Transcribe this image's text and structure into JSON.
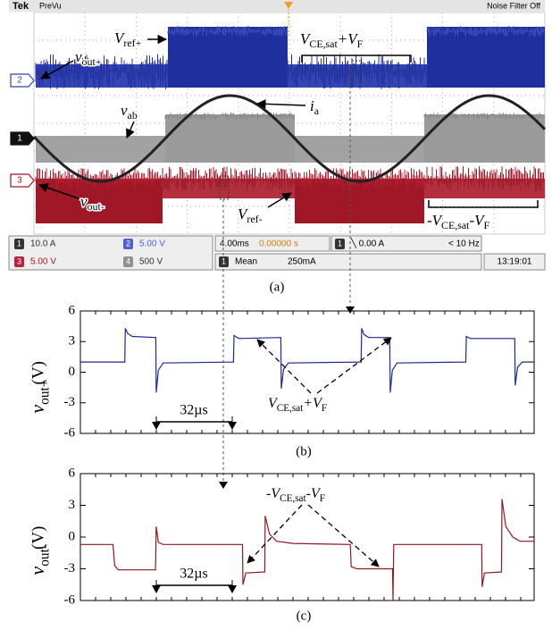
{
  "scope": {
    "brand": "Tek",
    "mode": "PreVu",
    "filter": "Noise Filter Off",
    "markers": [
      "2",
      "1",
      "3"
    ],
    "labels": {
      "vout_plus": [
        "v",
        "out+"
      ],
      "vref_plus": [
        "V",
        "ref+"
      ],
      "vce_plus": [
        "V",
        "CE,sat",
        "+V",
        "F"
      ],
      "vab": [
        "v",
        "ab"
      ],
      "ia": [
        "i",
        "a"
      ],
      "vout_minus": [
        "v",
        "out-"
      ],
      "vref_minus": [
        "V",
        "ref-"
      ],
      "vce_minus": [
        "-V",
        "CE,sat",
        "-V",
        "F"
      ]
    },
    "status": {
      "channels": [
        {
          "n": "1",
          "v": "10.0 A"
        },
        {
          "n": "2",
          "v": "5.00 V"
        },
        {
          "n": "3",
          "v": "5.00 V"
        },
        {
          "n": "4",
          "v": "500 V"
        }
      ],
      "timebase": "4.00ms",
      "position": "0.00000 s",
      "trigger": {
        "n": "1",
        "v": "╲ 0.00 A"
      },
      "freq": "< 10 Hz",
      "measure": {
        "n": "1",
        "name": "Mean",
        "v": "250mA"
      },
      "time": "13:19:01"
    },
    "caption": "(a)"
  },
  "chart_data": [
    {
      "type": "line",
      "ylabel": [
        "v",
        "out+"
      ],
      "yunit": "(V)",
      "color": "#1c2a8c",
      "xlim": [
        0,
        192
      ],
      "ylim": [
        -6,
        6
      ],
      "yticks": [
        -6,
        -3,
        0,
        3,
        6
      ],
      "x": [
        0,
        18.8,
        19,
        20,
        22,
        31.9,
        32.1,
        33,
        35,
        64.8,
        65,
        67,
        84.8,
        85,
        86,
        88,
        118.8,
        119,
        120,
        122,
        130.9,
        131.1,
        132,
        134,
        163.1,
        163.3,
        165,
        183.8,
        184,
        185,
        187,
        192
      ],
      "values": [
        1.0,
        1.0,
        4.3,
        3.8,
        3.5,
        3.4,
        -2.0,
        0.2,
        0.9,
        1.0,
        3.6,
        3.3,
        3.4,
        -1.6,
        0.3,
        0.9,
        1.0,
        4.3,
        3.7,
        3.4,
        3.4,
        -2.0,
        0.2,
        0.9,
        1.0,
        3.5,
        3.3,
        3.3,
        -1.3,
        0.5,
        1.0,
        1.0
      ],
      "annotation": [
        "V",
        "CE,sat",
        "+V",
        "F"
      ],
      "scale_label": "32µs",
      "caption": "(b)"
    },
    {
      "type": "line",
      "ylabel": [
        "v",
        "out-"
      ],
      "yunit": "(V)",
      "color": "#8e1a1e",
      "xlim": [
        0,
        192
      ],
      "ylim": [
        -6,
        6
      ],
      "yticks": [
        -6,
        -3,
        0,
        3,
        6
      ],
      "x": [
        0,
        13.8,
        14.5,
        16,
        31.8,
        32.1,
        33,
        35,
        68.6,
        68.8,
        70,
        78,
        78.2,
        80,
        83,
        90,
        114.2,
        114.6,
        117,
        132.1,
        132.3,
        132.6,
        169.8,
        170,
        171,
        178.2,
        178.4,
        180,
        183,
        186,
        192
      ],
      "values": [
        -0.7,
        -0.7,
        -2.7,
        -3.1,
        -3.1,
        1.0,
        -0.5,
        -0.7,
        -0.7,
        -4.5,
        -3.4,
        -3.3,
        2.0,
        0.3,
        -0.4,
        -0.6,
        -0.7,
        -2.8,
        -3.0,
        -3.0,
        -6.0,
        -0.7,
        -0.7,
        -4.7,
        -3.4,
        -3.3,
        3.6,
        1.0,
        0.0,
        -0.4,
        -0.4
      ],
      "annotation": [
        "-V",
        "CE,sat",
        "-V",
        "F"
      ],
      "scale_label": "32µs",
      "caption": "(c)"
    }
  ]
}
